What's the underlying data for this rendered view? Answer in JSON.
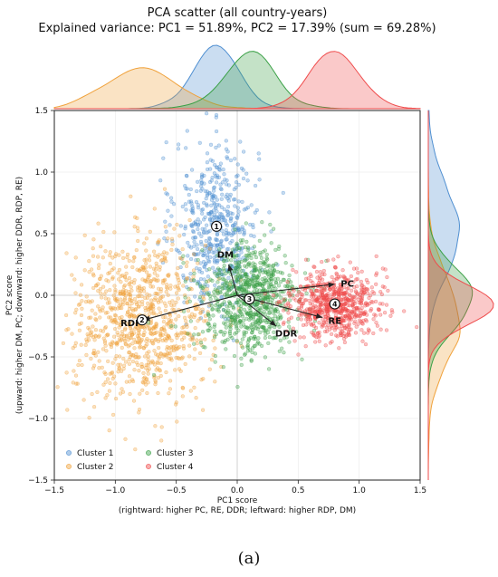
{
  "chart_data": {
    "type": "scatter",
    "title_line1": "PCA scatter (all country-years)",
    "title_line2": "Explained variance: PC1 = 51.89%, PC2 = 17.39% (sum = 69.28%)",
    "explained_variance": {
      "PC1": 51.89,
      "PC2": 17.39,
      "sum": 69.28
    },
    "xlabel": "PC1 score",
    "xlabel_note": "(rightward: higher PC, RE, DDR; leftward: higher RDP, DM)",
    "ylabel": "PC2 score",
    "ylabel_note": "(upward: higher DM, PC; downward: higher DDR, RDP, RE)",
    "xlim": [
      -1.5,
      1.5
    ],
    "ylim": [
      -1.5,
      1.5
    ],
    "x_ticks": [
      "−1.5",
      "−1.0",
      "−0.5",
      "0.0",
      "0.5",
      "1.0",
      "1.5"
    ],
    "y_ticks": [
      "−1.5",
      "−1.0",
      "−0.5",
      "0.0",
      "0.5",
      "1.0",
      "1.5"
    ],
    "x_tick_values": [
      -1.5,
      -1.0,
      -0.5,
      0.0,
      0.5,
      1.0,
      1.5
    ],
    "y_tick_values": [
      -1.5,
      -1.0,
      -0.5,
      0.0,
      0.5,
      1.0,
      1.5
    ],
    "grid": true,
    "legend_position": "lower-left",
    "series": [
      {
        "name": "Cluster 1",
        "marker_label": "1",
        "color": "#4f8fd1",
        "center": [
          -0.17,
          0.56
        ],
        "spread": [
          0.17,
          0.35
        ],
        "n": 520
      },
      {
        "name": "Cluster 2",
        "marker_label": "2",
        "color": "#f0a23c",
        "center": [
          -0.78,
          -0.2
        ],
        "spread": [
          0.28,
          0.32
        ],
        "n": 900
      },
      {
        "name": "Cluster 3",
        "marker_label": "3",
        "color": "#3aa046",
        "center": [
          0.1,
          -0.03
        ],
        "spread": [
          0.2,
          0.22
        ],
        "n": 800
      },
      {
        "name": "Cluster 4",
        "marker_label": "4",
        "color": "#ef4b4b",
        "center": [
          0.8,
          -0.07
        ],
        "spread": [
          0.18,
          0.14
        ],
        "n": 700
      }
    ],
    "loadings": [
      {
        "label": "DM",
        "x": -0.07,
        "y": 0.25
      },
      {
        "label": "PC",
        "x": 0.8,
        "y": 0.09
      },
      {
        "label": "RE",
        "x": 0.7,
        "y": -0.18
      },
      {
        "label": "DDR",
        "x": 0.32,
        "y": -0.25
      },
      {
        "label": "RDP",
        "x": -0.77,
        "y": -0.2
      }
    ],
    "loading_origin": [
      0.0,
      0.0
    ]
  },
  "caption": "(a)"
}
